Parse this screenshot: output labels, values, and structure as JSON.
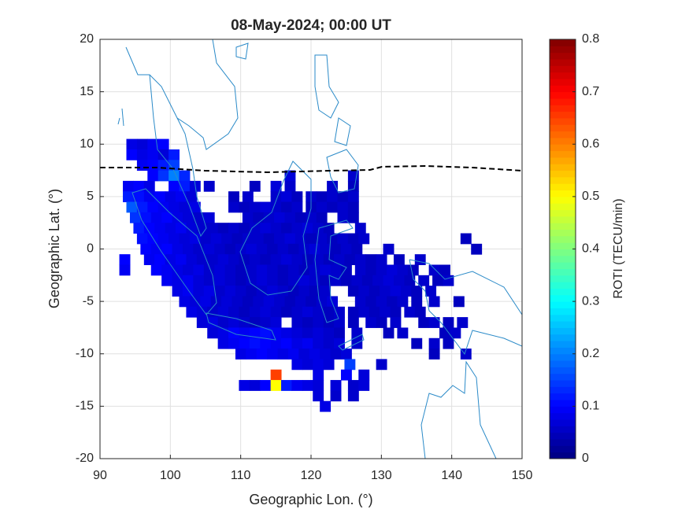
{
  "chart_data": {
    "type": "heatmap",
    "title": "08-May-2024; 00:00 UT",
    "x_label": "Geographic Lon. (°)",
    "y_label": "Geographic Lat. (°)",
    "colorbar_label": "ROTI (TECU/min)",
    "xlim": [
      90,
      150
    ],
    "xticks": [
      90,
      100,
      110,
      120,
      130,
      140,
      150
    ],
    "ylim": [
      -20,
      20
    ],
    "yticks": [
      -20,
      -15,
      -10,
      -5,
      0,
      5,
      10,
      15,
      20
    ],
    "clim": [
      0,
      0.8
    ],
    "cticks": [
      0,
      0.1,
      0.2,
      0.3,
      0.4,
      0.5,
      0.6,
      0.7,
      0.8
    ],
    "colormap": "jet",
    "grid": true,
    "rows": [
      {
        "lat": 10,
        "lon": [
          94.5,
          96,
          97.5,
          99
        ],
        "roti": [
          0.08,
          0.07,
          0.09,
          0.1
        ]
      },
      {
        "lat": 9,
        "lon": [
          94.5,
          96,
          97.5,
          99,
          100.5
        ],
        "roti": [
          0.1,
          0.08,
          0.09,
          0.07,
          0.12
        ]
      },
      {
        "lat": 8,
        "lon": [
          96,
          97.5,
          99,
          100.5
        ],
        "roti": [
          0.09,
          0.1,
          0.12,
          0.15
        ]
      },
      {
        "lat": 7,
        "lon": [
          97.5,
          99,
          100.5,
          102,
          117,
          126
        ],
        "roti": [
          0.1,
          0.14,
          0.2,
          0.13,
          0.07,
          0.06
        ]
      },
      {
        "lat": 6,
        "lon": [
          94,
          95.5,
          97,
          100.5,
          102,
          103.5,
          105.5,
          112,
          115,
          117,
          123,
          126
        ],
        "roti": [
          0.09,
          0.1,
          0.08,
          0.1,
          0.12,
          0.07,
          0.06,
          0.05,
          0.07,
          0.06,
          0.06,
          0.05
        ]
      },
      {
        "lat": 5,
        "lon": [
          94,
          95.5,
          97,
          98.5,
          100,
          101.5,
          103,
          109,
          111,
          115,
          116.5,
          118,
          120,
          121.5,
          123,
          124.5,
          126
        ],
        "roti": [
          0.12,
          0.11,
          0.09,
          0.1,
          0.08,
          0.09,
          0.07,
          0.05,
          0.06,
          0.06,
          0.07,
          0.05,
          0.06,
          0.05,
          0.06,
          0.05,
          0.06
        ]
      },
      {
        "lat": 4,
        "lon": [
          94.5,
          96,
          97.5,
          99,
          100.5,
          102,
          103.5,
          109,
          110.5,
          112,
          113.5,
          115,
          116.5,
          118,
          120,
          121.5,
          123,
          124.5,
          126
        ],
        "roti": [
          0.17,
          0.12,
          0.1,
          0.09,
          0.08,
          0.07,
          0.08,
          0.06,
          0.05,
          0.06,
          0.07,
          0.06,
          0.05,
          0.06,
          0.05,
          0.06,
          0.05,
          0.06,
          0.05
        ]
      },
      {
        "lat": 3,
        "lon": [
          95,
          96.5,
          98,
          99.5,
          101,
          102.5,
          104,
          105.5,
          111,
          112.5,
          114,
          115.5,
          117,
          118.5,
          120,
          121.5,
          124.5,
          126
        ],
        "roti": [
          0.14,
          0.11,
          0.09,
          0.1,
          0.08,
          0.07,
          0.06,
          0.07,
          0.06,
          0.05,
          0.06,
          0.07,
          0.06,
          0.05,
          0.06,
          0.05,
          0.06,
          0.05
        ]
      },
      {
        "lat": 2,
        "lon": [
          95.5,
          97,
          98.5,
          100,
          101.5,
          103,
          104.5,
          106,
          107.5,
          109,
          110.5,
          112,
          113.5,
          115,
          116.5,
          118,
          119.5,
          121,
          122.5,
          127
        ],
        "roti": [
          0.12,
          0.1,
          0.09,
          0.08,
          0.09,
          0.07,
          0.06,
          0.06,
          0.05,
          0.06,
          0.05,
          0.06,
          0.07,
          0.06,
          0.05,
          0.06,
          0.07,
          0.06,
          0.05,
          0.06
        ]
      },
      {
        "lat": 1,
        "lon": [
          96,
          97.5,
          99,
          100.5,
          102,
          103.5,
          105,
          106.5,
          108,
          109.5,
          111,
          112.5,
          114,
          115.5,
          117,
          118.5,
          120,
          121.5,
          123,
          124.5,
          126,
          127.5,
          142
        ],
        "roti": [
          0.11,
          0.1,
          0.09,
          0.08,
          0.07,
          0.08,
          0.06,
          0.07,
          0.06,
          0.05,
          0.06,
          0.06,
          0.05,
          0.06,
          0.07,
          0.06,
          0.05,
          0.06,
          0.05,
          0.06,
          0.05,
          0.06,
          0.05
        ]
      },
      {
        "lat": 0,
        "lon": [
          96.5,
          98,
          99.5,
          101,
          102.5,
          104,
          105.5,
          107,
          108.5,
          110,
          111.5,
          113,
          114.5,
          116,
          117.5,
          119,
          120.5,
          122,
          123.5,
          125,
          126.5,
          131,
          143.5
        ],
        "roti": [
          0.1,
          0.09,
          0.1,
          0.08,
          0.07,
          0.06,
          0.07,
          0.06,
          0.05,
          0.06,
          0.07,
          0.06,
          0.05,
          0.06,
          0.05,
          0.06,
          0.07,
          0.06,
          0.05,
          0.06,
          0.05,
          0.06,
          0.05
        ]
      },
      {
        "lat": -1,
        "lon": [
          93.5,
          97,
          98.5,
          100,
          101.5,
          103,
          104.5,
          106,
          107.5,
          109,
          110.5,
          112,
          113.5,
          115,
          116.5,
          118,
          119.5,
          121,
          122.5,
          124,
          125.5,
          127,
          128.5,
          130,
          132.5,
          135.5
        ],
        "roti": [
          0.1,
          0.09,
          0.1,
          0.08,
          0.09,
          0.07,
          0.06,
          0.06,
          0.07,
          0.06,
          0.05,
          0.06,
          0.05,
          0.06,
          0.07,
          0.06,
          0.05,
          0.06,
          0.05,
          0.06,
          0.05,
          0.06,
          0.05,
          0.06,
          0.05,
          0.06
        ]
      },
      {
        "lat": -2,
        "lon": [
          93.5,
          98,
          99.5,
          101,
          102.5,
          104,
          105.5,
          107,
          108.5,
          110,
          111.5,
          113,
          114.5,
          116,
          117.5,
          119,
          120.5,
          122,
          123.5,
          125,
          127,
          128.5,
          130,
          131.5,
          133,
          134.5,
          137.5,
          139
        ],
        "roti": [
          0.09,
          0.1,
          0.09,
          0.08,
          0.07,
          0.08,
          0.06,
          0.07,
          0.06,
          0.05,
          0.06,
          0.07,
          0.06,
          0.05,
          0.06,
          0.05,
          0.06,
          0.07,
          0.06,
          0.05,
          0.06,
          0.05,
          0.06,
          0.07,
          0.06,
          0.05,
          0.06,
          0.05
        ]
      },
      {
        "lat": -3,
        "lon": [
          99.5,
          101,
          102.5,
          104,
          105.5,
          107,
          108.5,
          110,
          111.5,
          113,
          114.5,
          116,
          117.5,
          119,
          120.5,
          122,
          123.5,
          125,
          126.5,
          128,
          129.5,
          131,
          132.5,
          134,
          136,
          138,
          139.5
        ],
        "roti": [
          0.09,
          0.08,
          0.09,
          0.07,
          0.06,
          0.07,
          0.06,
          0.05,
          0.06,
          0.07,
          0.06,
          0.05,
          0.06,
          0.07,
          0.06,
          0.05,
          0.06,
          0.05,
          0.06,
          0.05,
          0.06,
          0.07,
          0.06,
          0.05,
          0.06,
          0.05,
          0.06
        ]
      },
      {
        "lat": -4,
        "lon": [
          101,
          102.5,
          104,
          105.5,
          107,
          108.5,
          110,
          111.5,
          113,
          114.5,
          116,
          117.5,
          119,
          120.5,
          122,
          126,
          127.5,
          129,
          130.5,
          132,
          133.5,
          135,
          137
        ],
        "roti": [
          0.08,
          0.09,
          0.07,
          0.08,
          0.06,
          0.07,
          0.06,
          0.05,
          0.06,
          0.07,
          0.06,
          0.05,
          0.06,
          0.05,
          0.06,
          0.05,
          0.06,
          0.05,
          0.06,
          0.07,
          0.06,
          0.05,
          0.06
        ]
      },
      {
        "lat": -5,
        "lon": [
          102,
          103.5,
          105,
          106.5,
          108,
          109.5,
          111,
          112.5,
          114,
          115.5,
          117,
          118.5,
          120,
          121.5,
          123,
          127,
          128.5,
          130,
          131.5,
          133,
          135,
          137.5,
          141
        ],
        "roti": [
          0.08,
          0.07,
          0.08,
          0.06,
          0.07,
          0.06,
          0.05,
          0.06,
          0.07,
          0.06,
          0.05,
          0.06,
          0.05,
          0.06,
          0.07,
          0.06,
          0.05,
          0.06,
          0.05,
          0.06,
          0.05,
          0.06,
          0.05
        ]
      },
      {
        "lat": -6,
        "lon": [
          103,
          104.5,
          106,
          107.5,
          109,
          110.5,
          112,
          113.5,
          115,
          116.5,
          118,
          119.5,
          121,
          122.5,
          124,
          126,
          127.5,
          129,
          130.5,
          132,
          134,
          135.5
        ],
        "roti": [
          0.08,
          0.07,
          0.06,
          0.07,
          0.06,
          0.05,
          0.06,
          0.07,
          0.06,
          0.05,
          0.06,
          0.07,
          0.06,
          0.05,
          0.06,
          0.05,
          0.06,
          0.05,
          0.06,
          0.05,
          0.06,
          0.05
        ]
      },
      {
        "lat": -7,
        "lon": [
          104.5,
          106,
          107.5,
          109,
          110.5,
          112,
          113.5,
          115,
          118,
          119.5,
          121,
          122.5,
          124,
          126,
          128.5,
          130,
          132,
          136,
          137.5,
          139.5,
          141.5
        ],
        "roti": [
          0.07,
          0.08,
          0.06,
          0.07,
          0.06,
          0.05,
          0.06,
          0.07,
          0.06,
          0.05,
          0.06,
          0.05,
          0.06,
          0.05,
          0.06,
          0.05,
          0.06,
          0.05,
          0.06,
          0.05,
          0.06
        ]
      },
      {
        "lat": -8,
        "lon": [
          106,
          107.5,
          109,
          110.5,
          112,
          113.5,
          115,
          116.5,
          118,
          119.5,
          121,
          122.5,
          124,
          126.5,
          131,
          133,
          139,
          140.5
        ],
        "roti": [
          0.07,
          0.08,
          0.1,
          0.09,
          0.1,
          0.11,
          0.09,
          0.08,
          0.07,
          0.06,
          0.07,
          0.06,
          0.05,
          0.06,
          0.05,
          0.06,
          0.05,
          0.06
        ]
      },
      {
        "lat": -9,
        "lon": [
          107.5,
          109,
          110.5,
          112,
          113.5,
          115,
          116.5,
          118,
          119.5,
          121,
          122.5,
          124,
          126.5,
          135,
          137.5,
          139.5
        ],
        "roti": [
          0.08,
          0.09,
          0.1,
          0.11,
          0.1,
          0.09,
          0.1,
          0.08,
          0.09,
          0.07,
          0.06,
          0.07,
          0.06,
          0.05,
          0.06,
          0.05
        ]
      },
      {
        "lat": -10,
        "lon": [
          110,
          111.5,
          113,
          114.5,
          116,
          117.5,
          119,
          120.5,
          122,
          123.5,
          125,
          137.5,
          142
        ],
        "roti": [
          0.08,
          0.09,
          0.1,
          0.09,
          0.08,
          0.09,
          0.07,
          0.08,
          0.07,
          0.06,
          0.07,
          0.05,
          0.06
        ]
      },
      {
        "lat": -11,
        "lon": [
          118,
          119.5,
          121,
          122.5,
          125.5,
          130
        ],
        "roti": [
          0.08,
          0.07,
          0.08,
          0.07,
          0.15,
          0.06
        ]
      },
      {
        "lat": -12,
        "lon": [
          115,
          121,
          125,
          127.5
        ],
        "roti": [
          0.65,
          0.08,
          0.1,
          0.07
        ]
      },
      {
        "lat": -13,
        "lon": [
          110.5,
          112,
          113.5,
          115,
          116.5,
          118,
          119.5,
          121,
          123.5,
          126,
          127.5
        ],
        "roti": [
          0.08,
          0.07,
          0.1,
          0.5,
          0.12,
          0.09,
          0.08,
          0.07,
          0.07,
          0.06,
          0.07
        ]
      },
      {
        "lat": -14,
        "lon": [
          121,
          123.5,
          126
        ],
        "roti": [
          0.07,
          0.06,
          0.06
        ]
      },
      {
        "lat": -15,
        "lon": [
          122
        ],
        "roti": [
          0.08
        ]
      }
    ]
  }
}
